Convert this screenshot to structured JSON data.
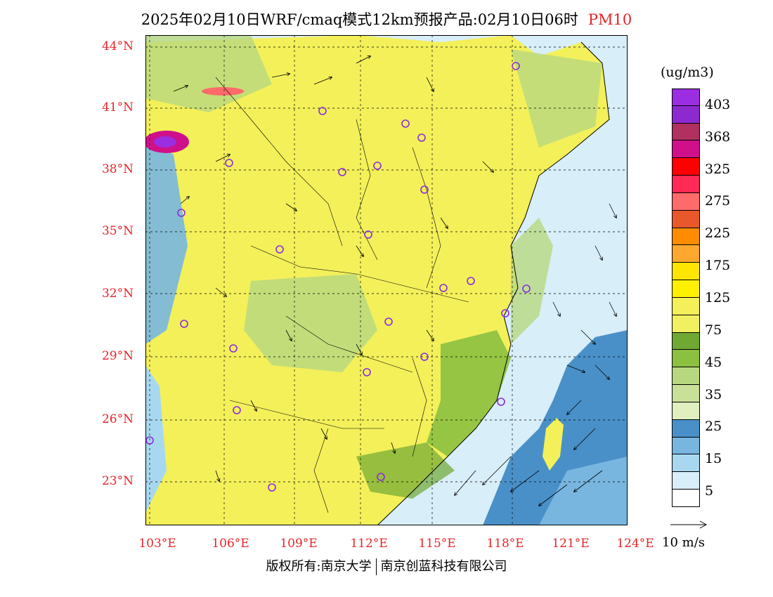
{
  "title": {
    "main": "2025年02月10日WRF/cmaq模式12km预报产品:02月10日06时",
    "variable": "PM10"
  },
  "lat_labels": [
    "44°N",
    "41°N",
    "38°N",
    "35°N",
    "32°N",
    "29°N",
    "26°N",
    "23°N"
  ],
  "lon_labels": [
    "103°E",
    "106°E",
    "109°E",
    "112°E",
    "115°E",
    "118°E",
    "121°E",
    "124°E"
  ],
  "colorbar": {
    "units": "(ug/m3)",
    "levels": [
      "403",
      "368",
      "325",
      "275",
      "225",
      "175",
      "125",
      "75",
      "45",
      "35",
      "25",
      "15",
      "5"
    ],
    "colors": [
      "#9b2ee0",
      "#8c2ad0",
      "#b03060",
      "#d0108a",
      "#ff0000",
      "#ff2a55",
      "#ff6a6a",
      "#e8582a",
      "#ff8c00",
      "#ffa830",
      "#ffe600",
      "#fff000",
      "#f3f05a",
      "#f0f060",
      "#6fa832",
      "#8cc040",
      "#b8d880",
      "#c8e098",
      "#e0eec0",
      "#4a90c8",
      "#78b6e0",
      "#a8d8f0",
      "#d8eef8",
      "#ffffff"
    ]
  },
  "vector_label": "10 m/s",
  "footer": {
    "left": "版权所有:南京大学",
    "right": "南京创蓝科技有限公司"
  }
}
